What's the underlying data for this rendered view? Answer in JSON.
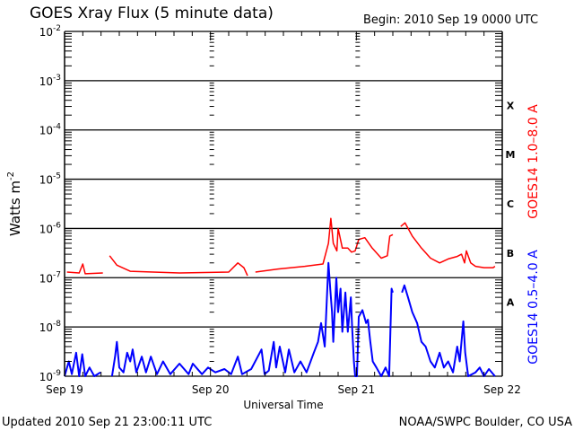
{
  "chart_data": {
    "type": "line",
    "title": "GOES Xray Flux (5 minute data)",
    "begin_label": "Begin:  2010 Sep 19 0000 UTC",
    "xlabel": "Universal Time",
    "ylabel": "Watts m",
    "ylabel_exp": "-2",
    "x_unit": "hours since 2010 Sep 19 0000 UTC",
    "xlim": [
      0,
      72
    ],
    "ylim": [
      1e-09,
      0.01
    ],
    "yscale": "log",
    "x_ticks": [
      {
        "hour": 0,
        "label": "Sep 19"
      },
      {
        "hour": 24,
        "label": "Sep 20"
      },
      {
        "hour": 48,
        "label": "Sep 21"
      },
      {
        "hour": 72,
        "label": "Sep 22"
      }
    ],
    "y_ticks": [
      {
        "value": 0.01,
        "base": "10",
        "exp": "-2"
      },
      {
        "value": 0.001,
        "base": "10",
        "exp": "-3"
      },
      {
        "value": 0.0001,
        "base": "10",
        "exp": "-4"
      },
      {
        "value": 1e-05,
        "base": "10",
        "exp": "-5"
      },
      {
        "value": 1e-06,
        "base": "10",
        "exp": "-6"
      },
      {
        "value": 1e-07,
        "base": "10",
        "exp": "-7"
      },
      {
        "value": 1e-08,
        "base": "10",
        "exp": "-8"
      },
      {
        "value": 1e-09,
        "base": "10",
        "exp": "-9"
      }
    ],
    "flare_classes": [
      {
        "label": "X",
        "low": 0.0001
      },
      {
        "label": "M",
        "low": 1e-05
      },
      {
        "label": "C",
        "low": 1e-06
      },
      {
        "label": "B",
        "low": 1e-07
      },
      {
        "label": "A",
        "low": 1e-08
      }
    ],
    "grid": true,
    "series": [
      {
        "name": "GOES14 1.0–8.0 A",
        "color": "#ff0000",
        "points": [
          [
            0.4,
            1.3e-07
          ],
          [
            2.4,
            1.25e-07
          ],
          [
            3.0,
            1.9e-07
          ],
          [
            3.4,
            1.2e-07
          ],
          [
            6.3,
            1.25e-07
          ],
          null,
          [
            7.4,
            2.8e-07
          ],
          [
            8.6,
            1.8e-07
          ],
          [
            10.8,
            1.35e-07
          ],
          [
            18.9,
            1.25e-07
          ],
          [
            27.0,
            1.3e-07
          ],
          [
            28.5,
            2e-07
          ],
          [
            29.5,
            1.6e-07
          ],
          [
            30.1,
            1.1e-07
          ],
          null,
          [
            31.4,
            1.3e-07
          ],
          [
            35.1,
            1.5e-07
          ],
          [
            39.5,
            1.7e-07
          ],
          [
            42.5,
            1.9e-07
          ],
          [
            43.4,
            5e-07
          ],
          [
            43.8,
            1.6e-06
          ],
          [
            44.2,
            5e-07
          ],
          [
            44.8,
            3.5e-07
          ],
          [
            45.0,
            1e-06
          ],
          [
            45.7,
            4e-07
          ],
          [
            46.6,
            4e-07
          ],
          [
            47.2,
            3.3e-07
          ],
          [
            47.8,
            3.5e-07
          ],
          [
            48.4,
            6e-07
          ],
          [
            49.4,
            6.5e-07
          ],
          [
            50.6,
            4e-07
          ],
          [
            52.1,
            2.5e-07
          ],
          [
            53.1,
            2.8e-07
          ],
          [
            53.5,
            7e-07
          ],
          [
            54.0,
            7.5e-07
          ],
          null,
          [
            55.3,
            1.1e-06
          ],
          [
            56.0,
            1.3e-06
          ],
          [
            57.2,
            7e-07
          ],
          [
            58.7,
            4e-07
          ],
          [
            60.2,
            2.5e-07
          ],
          [
            61.7,
            2e-07
          ],
          [
            63.1,
            2.4e-07
          ],
          [
            64.6,
            2.7e-07
          ],
          [
            65.3,
            3e-07
          ],
          [
            65.8,
            2e-07
          ],
          [
            66.1,
            3.5e-07
          ],
          [
            66.8,
            2e-07
          ],
          [
            67.6,
            1.7e-07
          ],
          [
            69.0,
            1.6e-07
          ],
          [
            70.5,
            1.6e-07
          ],
          [
            70.8,
            1.7e-07
          ]
        ]
      },
      {
        "name": "GOES14 0.5–4.0 A",
        "color": "#0000ff",
        "points": [
          [
            0,
            1e-09
          ],
          [
            0.7,
            2e-09
          ],
          [
            1.2,
            1.1e-09
          ],
          [
            1.9,
            3e-09
          ],
          [
            2.4,
            1e-09
          ],
          [
            2.9,
            2.8e-09
          ],
          [
            3.4,
            1e-09
          ],
          [
            4.1,
            1.5e-09
          ],
          [
            4.9,
            1e-09
          ],
          [
            5.9,
            1.2e-09
          ],
          null,
          [
            7.8,
            1e-09
          ],
          [
            8.3,
            2.5e-09
          ],
          [
            8.6,
            5e-09
          ],
          [
            9.0,
            1.5e-09
          ],
          [
            9.7,
            1.2e-09
          ],
          [
            10.3,
            3e-09
          ],
          [
            10.8,
            2e-09
          ],
          [
            11.2,
            3.5e-09
          ],
          [
            11.8,
            1.2e-09
          ],
          [
            12.7,
            2.5e-09
          ],
          [
            13.4,
            1.2e-09
          ],
          [
            14.2,
            2.5e-09
          ],
          [
            15.2,
            1.1e-09
          ],
          [
            16.2,
            2e-09
          ],
          [
            17.4,
            1.1e-09
          ],
          [
            18.9,
            1.8e-09
          ],
          [
            20.4,
            1.1e-09
          ],
          [
            21.1,
            1.8e-09
          ],
          [
            22.6,
            1.1e-09
          ],
          [
            23.6,
            1.5e-09
          ],
          [
            24.8,
            1.2e-09
          ],
          [
            26.3,
            1.4e-09
          ],
          [
            27.4,
            1.1e-09
          ],
          [
            28.5,
            2.5e-09
          ],
          [
            29.2,
            1.1e-09
          ],
          [
            30.7,
            1.4e-09
          ],
          [
            32.4,
            3.5e-09
          ],
          [
            32.9,
            1.1e-09
          ],
          [
            33.6,
            1.3e-09
          ],
          [
            34.4,
            5e-09
          ],
          [
            34.8,
            1.5e-09
          ],
          [
            35.4,
            4e-09
          ],
          [
            36.3,
            1.2e-09
          ],
          [
            36.9,
            3.5e-09
          ],
          [
            37.8,
            1.2e-09
          ],
          [
            38.8,
            2e-09
          ],
          [
            39.8,
            1.2e-09
          ],
          [
            41.0,
            3e-09
          ],
          [
            41.7,
            5e-09
          ],
          [
            42.2,
            1.2e-08
          ],
          [
            42.8,
            4e-09
          ],
          [
            43.4,
            2e-07
          ],
          [
            43.7,
            6e-08
          ],
          [
            44.0,
            2e-08
          ],
          [
            44.2,
            5e-09
          ],
          [
            44.7,
            1e-07
          ],
          [
            45.0,
            2e-08
          ],
          [
            45.4,
            6e-08
          ],
          [
            45.7,
            8e-09
          ],
          [
            46.2,
            5e-08
          ],
          [
            46.6,
            8e-09
          ],
          [
            47.1,
            4e-08
          ],
          [
            47.3,
            1e-08
          ],
          [
            47.6,
            2e-09
          ],
          [
            47.8,
            1e-09
          ],
          [
            48.1,
            1e-09
          ],
          [
            48.4,
            1.6e-08
          ],
          [
            49.0,
            2.2e-08
          ],
          [
            49.6,
            1.2e-08
          ],
          [
            49.9,
            1.4e-08
          ],
          [
            50.3,
            5e-09
          ],
          [
            50.7,
            2e-09
          ],
          [
            51.3,
            1.5e-09
          ],
          [
            52.1,
            1e-09
          ],
          [
            52.8,
            1.5e-09
          ],
          [
            53.4,
            1e-09
          ],
          [
            53.8,
            6e-08
          ],
          [
            54.0,
            5e-08
          ],
          null,
          [
            55.5,
            5e-08
          ],
          [
            55.9,
            7e-08
          ],
          [
            56.5,
            4e-08
          ],
          [
            57.2,
            2e-08
          ],
          [
            58.0,
            1.2e-08
          ],
          [
            58.7,
            5e-09
          ],
          [
            59.4,
            4e-09
          ],
          [
            60.2,
            2e-09
          ],
          [
            60.9,
            1.5e-09
          ],
          [
            61.7,
            3e-09
          ],
          [
            62.4,
            1.5e-09
          ],
          [
            63.1,
            2e-09
          ],
          [
            63.9,
            1.2e-09
          ],
          [
            64.6,
            4e-09
          ],
          [
            65.0,
            2e-09
          ],
          [
            65.6,
            1.3e-08
          ],
          [
            65.9,
            3e-09
          ],
          [
            66.4,
            1e-09
          ],
          [
            67.6,
            1.2e-09
          ],
          [
            68.3,
            1.5e-09
          ],
          [
            69.0,
            1e-09
          ],
          [
            69.8,
            1.4e-09
          ],
          [
            70.8,
            1e-09
          ]
        ]
      }
    ]
  },
  "footer": {
    "updated": "Updated 2010 Sep 21 23:00:11 UTC",
    "credit": "NOAA/SWPC Boulder, CO USA"
  }
}
